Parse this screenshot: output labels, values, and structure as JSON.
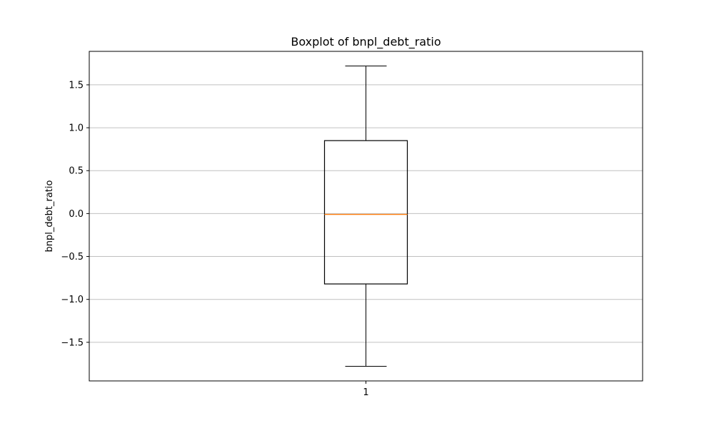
{
  "chart_data": {
    "type": "box",
    "title": "Boxplot of bnpl_debt_ratio",
    "xlabel": "",
    "ylabel": "bnpl_debt_ratio",
    "categories": [
      "1"
    ],
    "boxes": [
      {
        "category": "1",
        "whisker_low": -1.78,
        "q1": -0.82,
        "median": -0.01,
        "q3": 0.85,
        "whisker_high": 1.72
      }
    ],
    "ylim": [
      -1.95,
      1.89
    ],
    "yticks": [
      -1.5,
      -1.0,
      -0.5,
      0.0,
      0.5,
      1.0,
      1.5
    ],
    "ytick_labels": [
      "−1.5",
      "−1.0",
      "−0.5",
      "0.0",
      "0.5",
      "1.0",
      "1.5"
    ],
    "grid": "y",
    "legend": "none",
    "colors": {
      "box": "#000000",
      "median": "#ff7f0e",
      "grid": "#c0c0c0"
    }
  }
}
